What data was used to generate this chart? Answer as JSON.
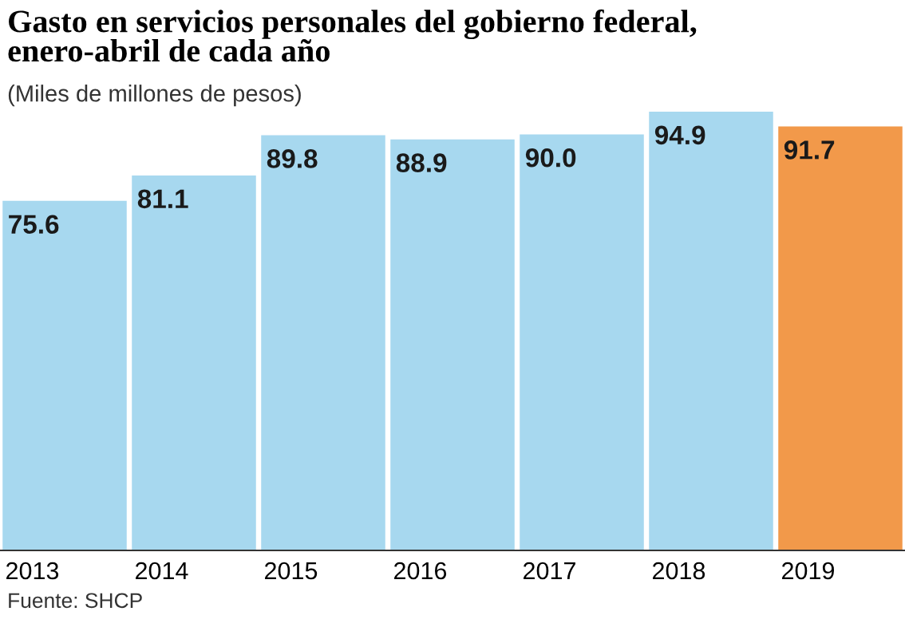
{
  "chart_data": {
    "type": "bar",
    "title": "Gasto en servicios personales del gobierno federal,\nenero-abril de cada año",
    "subtitle": "(Miles de millones de pesos)",
    "categories": [
      "2013",
      "2014",
      "2015",
      "2016",
      "2017",
      "2018",
      "2019"
    ],
    "values": [
      75.6,
      81.1,
      89.8,
      88.9,
      90.0,
      94.9,
      91.7
    ],
    "colors": [
      "#a7d8ef",
      "#a7d8ef",
      "#a7d8ef",
      "#a7d8ef",
      "#a7d8ef",
      "#a7d8ef",
      "#f2994a"
    ],
    "value_labels": [
      "75.6",
      "81.1",
      "89.8",
      "88.9",
      "90.0",
      "94.9",
      "91.7"
    ],
    "annotations": [
      "Fuente: SHCP"
    ],
    "grid": false,
    "legend": false
  }
}
